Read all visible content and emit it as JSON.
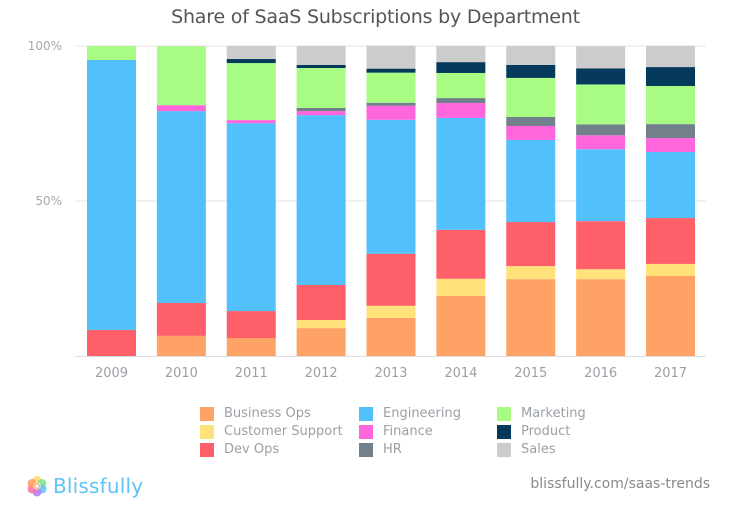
{
  "chart_data": {
    "type": "bar",
    "stacked": true,
    "title": "Share of SaaS Subscriptions by Department",
    "xlabel": "",
    "ylabel": "",
    "ylim": [
      0,
      100
    ],
    "yticks": [
      {
        "value": 50,
        "label": "50%"
      },
      {
        "value": 100,
        "label": "100%"
      }
    ],
    "grid": true,
    "legend_position": "bottom",
    "categories": [
      "2009",
      "2010",
      "2011",
      "2012",
      "2013",
      "2014",
      "2015",
      "2016",
      "2017"
    ],
    "series": [
      {
        "name": "Business Ops",
        "color": "#FFA266",
        "values": [
          0,
          6.5,
          5.8,
          9.0,
          12.3,
          19.4,
          24.8,
          24.8,
          25.8
        ]
      },
      {
        "name": "Customer Support",
        "color": "#FFE37A",
        "values": [
          0,
          0,
          0,
          2.6,
          3.9,
          5.5,
          4.2,
          3.2,
          3.9
        ]
      },
      {
        "name": "Dev Ops",
        "color": "#FF5F68",
        "values": [
          8.4,
          10.6,
          8.7,
          11.3,
          16.8,
          15.8,
          14.2,
          15.5,
          14.8
        ]
      },
      {
        "name": "Engineering",
        "color": "#52C0FA",
        "values": [
          87.1,
          61.9,
          60.6,
          54.8,
          43.2,
          36.1,
          26.5,
          23.2,
          21.3
        ]
      },
      {
        "name": "Finance",
        "color": "#FF66DD",
        "values": [
          0,
          1.9,
          1.0,
          1.3,
          4.5,
          4.8,
          4.5,
          4.5,
          4.5
        ]
      },
      {
        "name": "HR",
        "color": "#71808A",
        "values": [
          0,
          0,
          0,
          1.0,
          1.0,
          1.6,
          2.9,
          3.5,
          4.5
        ]
      },
      {
        "name": "Marketing",
        "color": "#A8FC84",
        "values": [
          4.5,
          19.0,
          18.4,
          12.9,
          9.7,
          8.1,
          12.6,
          12.9,
          12.3
        ]
      },
      {
        "name": "Product",
        "color": "#063A5C",
        "values": [
          0,
          0,
          1.3,
          1.0,
          1.3,
          3.5,
          4.2,
          5.2,
          6.1
        ]
      },
      {
        "name": "Sales",
        "color": "#CCCCCC",
        "values": [
          0,
          0,
          4.2,
          6.1,
          7.4,
          5.2,
          6.1,
          7.1,
          6.8
        ]
      }
    ],
    "legend_order": [
      "Business Ops",
      "Customer Support",
      "Dev Ops",
      "Engineering",
      "Finance",
      "HR",
      "Marketing",
      "Product",
      "Sales"
    ]
  },
  "footer": {
    "brand": "Blissfully",
    "brand_icon": "flower-logo-icon",
    "url": "blissfully.com/saas-trends"
  }
}
